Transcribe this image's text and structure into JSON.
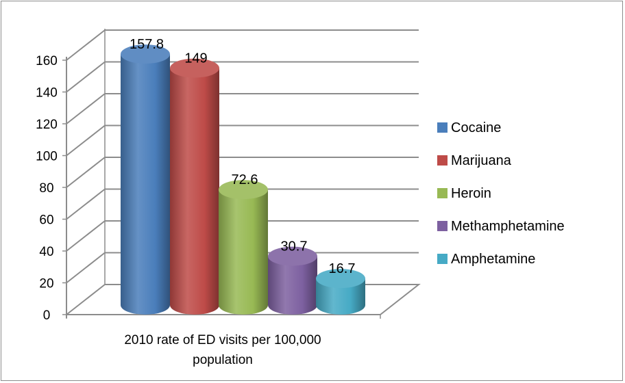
{
  "chart_data": {
    "type": "bar",
    "style": "3d-cylinder",
    "category_label_lines": [
      "2010 rate of ED visits per 100,000",
      "population"
    ],
    "series": [
      {
        "name": "Cocaine",
        "value": 157.8,
        "label": "157.8",
        "color": "#4a7ebb"
      },
      {
        "name": "Marijuana",
        "value": 149,
        "label": "149",
        "color": "#be4b48"
      },
      {
        "name": "Heroin",
        "value": 72.6,
        "label": "72.6",
        "color": "#98b954"
      },
      {
        "name": "Methamphetamine",
        "value": 30.7,
        "label": "30.7",
        "color": "#7d60a0"
      },
      {
        "name": "Amphetamine",
        "value": 16.7,
        "label": "16.7",
        "color": "#46aac5"
      }
    ],
    "yticks": [
      "0",
      "20",
      "40",
      "60",
      "80",
      "100",
      "120",
      "140",
      "160"
    ],
    "ylim": [
      0,
      160
    ],
    "grid": true,
    "legend_position": "right"
  }
}
